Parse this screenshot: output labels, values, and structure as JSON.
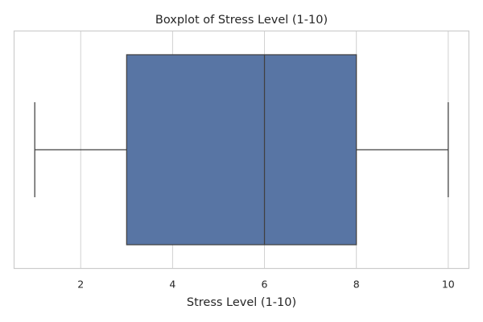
{
  "chart_data": {
    "type": "boxplot",
    "title": "Boxplot of Stress Level (1-10)",
    "xlabel": "Stress Level (1-10)",
    "ylabel": "",
    "orientation": "horizontal",
    "xlim": [
      0.55,
      10.45
    ],
    "x_ticks": [
      2,
      4,
      6,
      8,
      10
    ],
    "grid": true,
    "series": [
      {
        "min": 1,
        "q1": 3,
        "median": 6,
        "q3": 8,
        "max": 10,
        "color": "#5875a4"
      }
    ]
  },
  "colors": {
    "box_fill": "#5875a4",
    "line": "#404040",
    "grid": "#d0d0d0",
    "frame": "#cccccc",
    "text": "#262626"
  }
}
